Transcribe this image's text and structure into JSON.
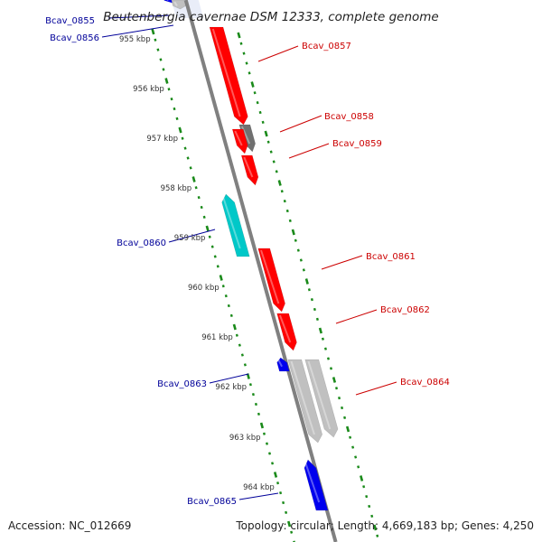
{
  "title": "Beutenbergia cavernae DSM 12333, complete genome",
  "footer": {
    "accession": "Accession: NC_012669",
    "summary": "Topology: circular; Length: 4,669,183 bp; Genes: 4,250"
  },
  "colors": {
    "backbone": "#808080",
    "tick_green": "#1a8a1a",
    "forward_gene": "#ff0000",
    "reverse_gene": "#0000ee",
    "cyan_gene": "#00c8c8",
    "gray_gene": "#707070",
    "light_gray_gene": "#c0c0c0",
    "forward_label": "#cc0000",
    "reverse_label": "#000099"
  },
  "scale": {
    "unit": "kbp",
    "ticks": [
      "955 kbp",
      "956 kbp",
      "957 kbp",
      "958 kbp",
      "959 kbp",
      "960 kbp",
      "961 kbp",
      "962 kbp",
      "963 kbp",
      "964 kbp"
    ]
  },
  "genes": [
    {
      "id": "Bcav_0855",
      "label": "Bcav_0855",
      "strand": "reverse",
      "color": "reverse_gene"
    },
    {
      "id": "Bcav_0856",
      "label": "Bcav_0856",
      "strand": "reverse",
      "color": "light_gray_gene"
    },
    {
      "id": "Bcav_0857",
      "label": "Bcav_0857",
      "strand": "forward",
      "color": "forward_gene"
    },
    {
      "id": "Bcav_0858",
      "label": "Bcav_0858",
      "strand": "forward",
      "color": "gray_gene"
    },
    {
      "id": "Bcav_0859",
      "label": "Bcav_0859",
      "strand": "forward",
      "color": "forward_gene"
    },
    {
      "id": "Bcav_0860",
      "label": "Bcav_0860",
      "strand": "reverse",
      "color": "cyan_gene"
    },
    {
      "id": "Bcav_0861",
      "label": "Bcav_0861",
      "strand": "forward",
      "color": "forward_gene"
    },
    {
      "id": "Bcav_0862",
      "label": "Bcav_0862",
      "strand": "forward",
      "color": "forward_gene"
    },
    {
      "id": "Bcav_0863",
      "label": "Bcav_0863",
      "strand": "reverse",
      "color": "reverse_gene"
    },
    {
      "id": "Bcav_0864",
      "label": "Bcav_0864",
      "strand": "forward",
      "color": "light_gray_gene"
    },
    {
      "id": "Bcav_0865",
      "label": "Bcav_0865",
      "strand": "reverse",
      "color": "reverse_gene"
    }
  ]
}
